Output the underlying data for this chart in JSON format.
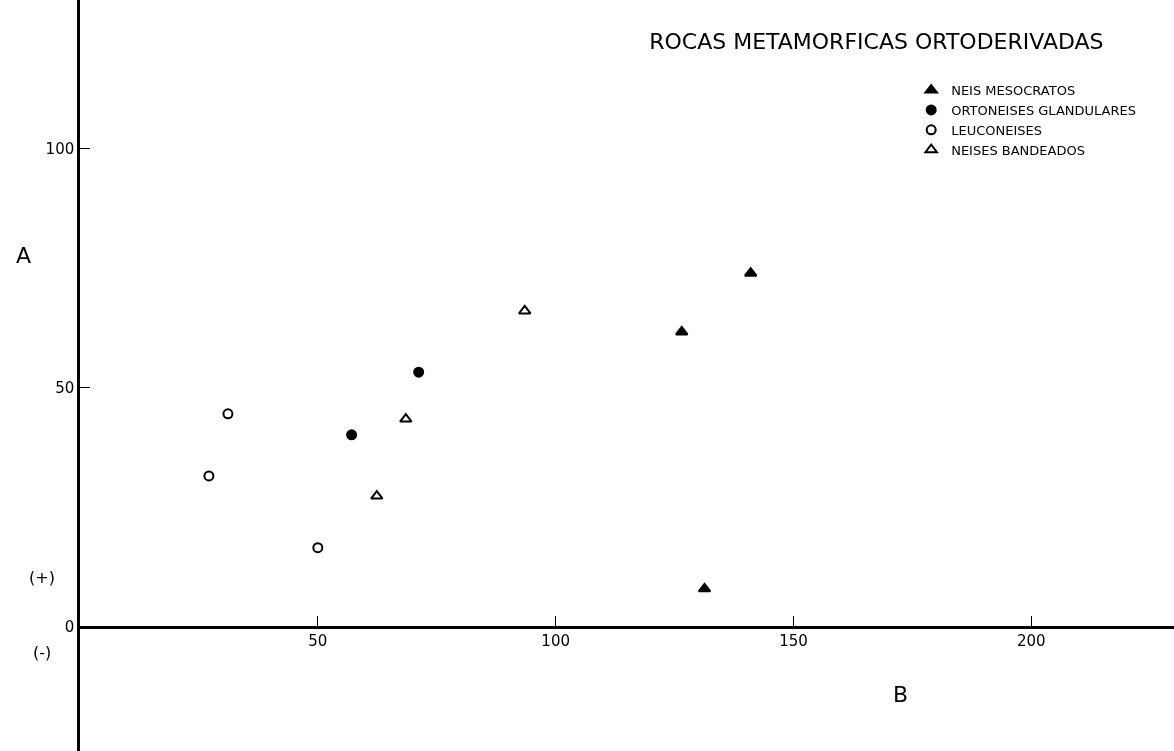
{
  "chart_data": {
    "type": "scatter",
    "title": "ROCAS METAMORFICAS ORTODERIVADAS",
    "xlabel": "B",
    "ylabel": "A",
    "annotations": [
      "(+)",
      "(-)"
    ],
    "xlim": [
      0,
      230
    ],
    "ylim": [
      -26,
      131
    ],
    "xticks": [
      50,
      100,
      150,
      200
    ],
    "yticks": [
      0,
      50,
      100
    ],
    "legend": "top right",
    "series": [
      {
        "name": "NEIS MESOCRATOS",
        "color": "#000000",
        "marker": "triangle",
        "x": [
          126.5,
          141.0,
          131.3
        ],
        "values": [
          61.6,
          73.9,
          7.9
        ]
      },
      {
        "name": "ORTONEISES GLANDULARES",
        "color": "#000000",
        "marker": "circle",
        "x": [
          57.1,
          71.2
        ],
        "values": [
          40.1,
          53.2
        ]
      },
      {
        "name": "LEUCONEISES",
        "color": "#000000",
        "marker": "circle",
        "x": [
          31.1,
          27.1,
          50.0
        ],
        "values": [
          44.5,
          31.5,
          16.5
        ]
      },
      {
        "name": "NEISES BANDEADOS",
        "color": "#000000",
        "marker": "triangle",
        "x": [
          68.5,
          62.4,
          93.5
        ],
        "values": [
          43.4,
          27.3,
          66.0
        ]
      }
    ]
  }
}
